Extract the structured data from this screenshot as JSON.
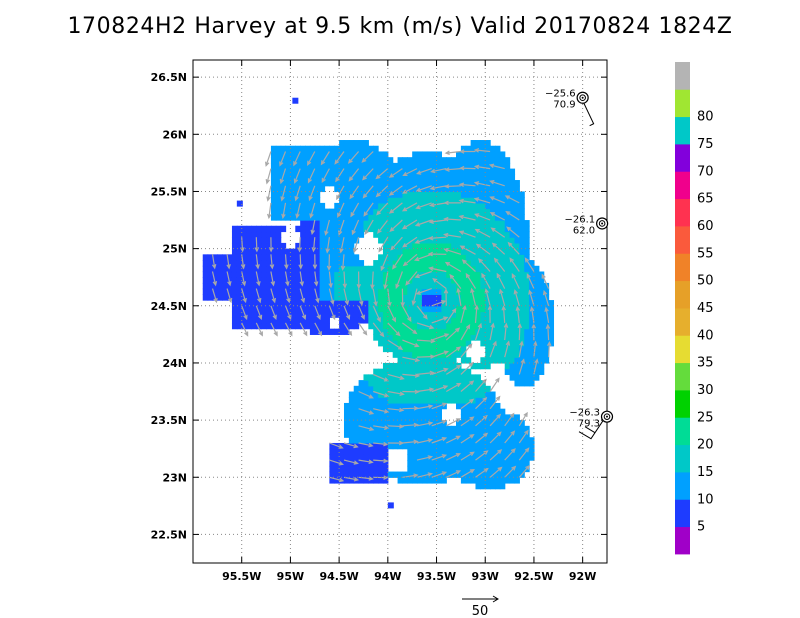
{
  "title": "170824H2 Harvey at 9.5 km (m/s) Valid 20170824 1824Z",
  "chart_data": {
    "type": "heatmap",
    "variable": "wind speed",
    "units": "m/s",
    "xlim": [
      -96.0,
      -91.75
    ],
    "ylim": [
      22.25,
      26.65
    ],
    "x_ticks": [
      -95.5,
      -95.0,
      -94.5,
      -94.0,
      -93.5,
      -93.0,
      -92.5,
      -92.0
    ],
    "x_tick_labels": [
      "95.5W",
      "95W",
      "94.5W",
      "94W",
      "93.5W",
      "93W",
      "92.5W",
      "92W"
    ],
    "y_ticks": [
      22.5,
      23.0,
      23.5,
      24.0,
      24.5,
      25.0,
      25.5,
      26.0,
      26.5
    ],
    "y_tick_labels": [
      "22.5N",
      "23N",
      "23.5N",
      "24N",
      "24.5N",
      "25N",
      "25.5N",
      "26N",
      "26.5N"
    ],
    "grid": true,
    "colorbar": {
      "levels": [
        0,
        5,
        10,
        15,
        20,
        25,
        30,
        35,
        40,
        45,
        50,
        55,
        60,
        65,
        70,
        75,
        80,
        85
      ],
      "labels": [
        "5",
        "10",
        "15",
        "20",
        "25",
        "30",
        "35",
        "40",
        "45",
        "50",
        "55",
        "60",
        "65",
        "70",
        "75",
        "80"
      ],
      "colors": [
        "#a000c8",
        "#1e3cff",
        "#00a0ff",
        "#00c8c8",
        "#00dc96",
        "#00d200",
        "#64dc3c",
        "#e6dc32",
        "#e6af2d",
        "#e6a028",
        "#f08228",
        "#fa5a3c",
        "#ff3250",
        "#f0008c",
        "#8200dc",
        "#00c8c8",
        "#a0e632",
        "#b4b4b4"
      ]
    },
    "storm_center": {
      "lon": -93.55,
      "lat": 24.55
    },
    "wind_pattern": "cyclonic",
    "wind_speed_regions": {
      "core_max": "20-25",
      "inner": "15-20",
      "outer": "10-15",
      "periphery_southwest": "5-10"
    },
    "reference_vector": {
      "label": "50",
      "units": "m/s"
    },
    "dropsondes": [
      {
        "lon": -92.0,
        "lat": 26.32,
        "temp_label": "−25.6",
        "wind_label": "70.9"
      },
      {
        "lon": -91.8,
        "lat": 25.22,
        "temp_label": "−26.1",
        "wind_label": "62.0"
      },
      {
        "lon": -91.75,
        "lat": 23.53,
        "temp_label": "−26.3",
        "wind_label": "79.3"
      }
    ]
  }
}
